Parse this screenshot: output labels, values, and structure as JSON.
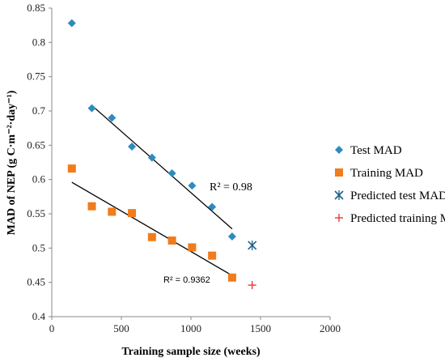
{
  "chart_data": {
    "type": "scatter",
    "xlabel": "Training sample size (weeks)",
    "ylabel": "MAD of NEP (g C·m⁻²·day⁻¹)",
    "xlim": [
      0,
      2000
    ],
    "ylim": [
      0.4,
      0.85
    ],
    "xticks": [
      "0",
      "500",
      "1000",
      "1500",
      "2000"
    ],
    "yticks": [
      "0.4",
      "0.45",
      "0.5",
      "0.55",
      "0.6",
      "0.65",
      "0.7",
      "0.75",
      "0.8",
      "0.85"
    ],
    "grid": false,
    "legend_position": "right",
    "series": [
      {
        "name": "Test MAD",
        "marker": "diamond",
        "color": "#2e8bbf",
        "points": [
          {
            "x": 144,
            "y": 0.828
          },
          {
            "x": 288,
            "y": 0.704
          },
          {
            "x": 432,
            "y": 0.69
          },
          {
            "x": 576,
            "y": 0.648
          },
          {
            "x": 720,
            "y": 0.632
          },
          {
            "x": 864,
            "y": 0.609
          },
          {
            "x": 1008,
            "y": 0.591
          },
          {
            "x": 1152,
            "y": 0.56
          },
          {
            "x": 1296,
            "y": 0.517
          }
        ]
      },
      {
        "name": "Training MAD",
        "marker": "square",
        "color": "#f07c1c",
        "points": [
          {
            "x": 144,
            "y": 0.616
          },
          {
            "x": 288,
            "y": 0.561
          },
          {
            "x": 432,
            "y": 0.553
          },
          {
            "x": 576,
            "y": 0.551
          },
          {
            "x": 720,
            "y": 0.516
          },
          {
            "x": 864,
            "y": 0.511
          },
          {
            "x": 1008,
            "y": 0.501
          },
          {
            "x": 1152,
            "y": 0.489
          },
          {
            "x": 1296,
            "y": 0.457
          }
        ]
      },
      {
        "name": "Predicted test MAD",
        "marker": "asterisk",
        "color": "#1f5f8b",
        "points": [
          {
            "x": 1440,
            "y": 0.504
          }
        ]
      },
      {
        "name": "Predicted training MAD",
        "marker": "plus",
        "color": "#e8383d",
        "points": [
          {
            "x": 1440,
            "y": 0.446
          }
        ]
      }
    ],
    "trendlines": [
      {
        "series": "Test MAD",
        "x": [
          288,
          1296
        ],
        "y": [
          0.708,
          0.528
        ],
        "color": "#000000",
        "r2_label": "R² = 0.98"
      },
      {
        "series": "Training MAD",
        "x": [
          144,
          1296
        ],
        "y": [
          0.596,
          0.46
        ],
        "color": "#000000",
        "r2_label": "R² = 0.9362"
      }
    ]
  }
}
